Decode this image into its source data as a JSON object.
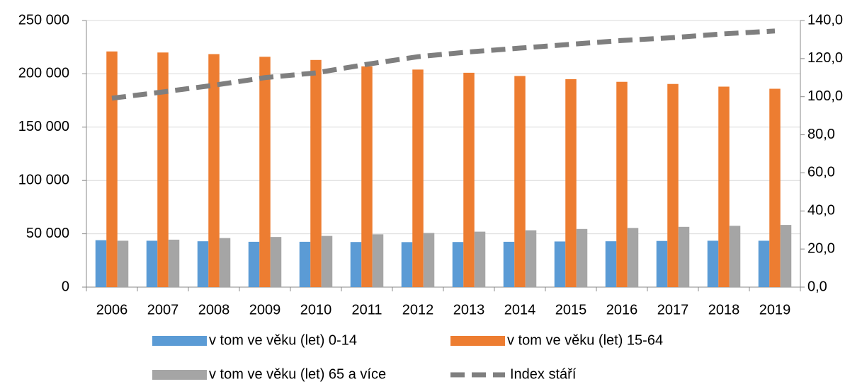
{
  "chart_data": {
    "type": "bar",
    "categories": [
      "2006",
      "2007",
      "2008",
      "2009",
      "2010",
      "2011",
      "2012",
      "2013",
      "2014",
      "2015",
      "2016",
      "2017",
      "2018",
      "2019"
    ],
    "series": [
      {
        "name": "v tom ve věku (let) 0-14",
        "color": "#5b9bd5",
        "values": [
          44000,
          43500,
          43000,
          42500,
          42500,
          42300,
          42200,
          42300,
          42500,
          42800,
          43000,
          43300,
          43500,
          43500
        ]
      },
      {
        "name": "v tom ve věku (let) 15-64",
        "color": "#ed7d31",
        "values": [
          221000,
          220000,
          218500,
          216000,
          213000,
          207000,
          204000,
          201000,
          198000,
          195000,
          192500,
          190500,
          188000,
          186000
        ]
      },
      {
        "name": "v tom ve věku (let) 65 a více",
        "color": "#a5a5a5",
        "values": [
          43500,
          44500,
          46000,
          47000,
          48000,
          49500,
          50800,
          52000,
          53300,
          54500,
          55500,
          56500,
          57500,
          58300
        ]
      },
      {
        "name": "Index stáří",
        "color": "#7f7f7f",
        "type": "line",
        "axis": "y2",
        "values": [
          99.2,
          102.5,
          106,
          110,
          112.5,
          117,
          121,
          123.5,
          125.5,
          127.5,
          129.5,
          131,
          133,
          134.5
        ]
      }
    ],
    "ylim": [
      0,
      250000
    ],
    "yticks": [
      0,
      {
        "value": 50000,
        "label": "50 000"
      },
      {
        "value": 100000,
        "label": "100 000"
      },
      {
        "value": 150000,
        "label": "150 000"
      },
      {
        "value": 200000,
        "label": "200 000"
      },
      {
        "value": 250000,
        "label": "250 000"
      }
    ],
    "y2lim": [
      0,
      140
    ],
    "y2ticks": [
      {
        "value": 0,
        "label": "0,0"
      },
      {
        "value": 20,
        "label": "20,0"
      },
      {
        "value": 40,
        "label": "40,0"
      },
      {
        "value": 60,
        "label": "60,0"
      },
      {
        "value": 80,
        "label": "80,0"
      },
      {
        "value": 100,
        "label": "100,0"
      },
      {
        "value": 120,
        "label": "120,0"
      },
      {
        "value": 140,
        "label": "140,0"
      }
    ],
    "grid": true,
    "legend": "bottom"
  }
}
